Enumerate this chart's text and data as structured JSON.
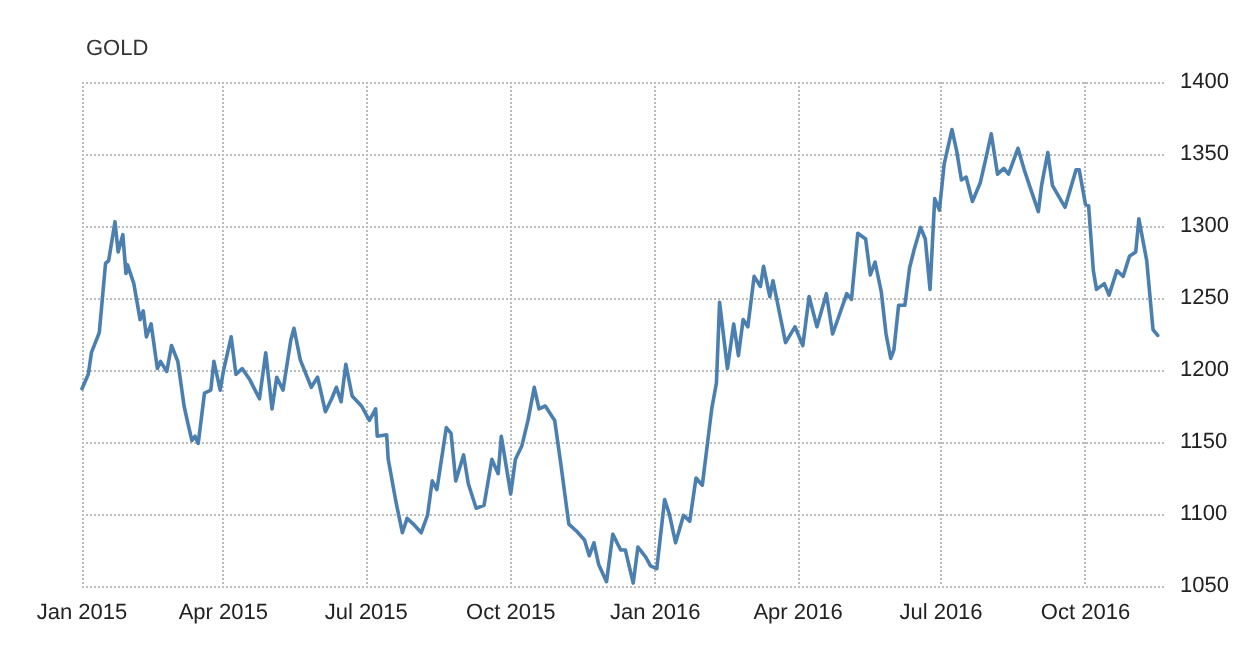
{
  "chart_data": {
    "type": "line",
    "title": "GOLD",
    "x": [
      "2015-01-01",
      "2015-01-05",
      "2015-01-07",
      "2015-01-12",
      "2015-01-16",
      "2015-01-18",
      "2015-01-22",
      "2015-01-24",
      "2015-01-27",
      "2015-01-29",
      "2015-01-30",
      "2015-02-03",
      "2015-02-07",
      "2015-02-09",
      "2015-02-11",
      "2015-02-14",
      "2015-02-18",
      "2015-02-20",
      "2015-02-24",
      "2015-02-27",
      "2015-03-03",
      "2015-03-07",
      "2015-03-09",
      "2015-03-12",
      "2015-03-14",
      "2015-03-16",
      "2015-03-20",
      "2015-03-24",
      "2015-03-26",
      "2015-03-30",
      "2015-04-01",
      "2015-04-06",
      "2015-04-09",
      "2015-04-13",
      "2015-04-18",
      "2015-04-24",
      "2015-04-28",
      "2015-05-02",
      "2015-05-05",
      "2015-05-09",
      "2015-05-14",
      "2015-05-16",
      "2015-05-20",
      "2015-05-27",
      "2015-05-31",
      "2015-06-05",
      "2015-06-09",
      "2015-06-12",
      "2015-06-15",
      "2015-06-18",
      "2015-06-22",
      "2015-06-28",
      "2015-07-03",
      "2015-07-07",
      "2015-07-08",
      "2015-07-14",
      "2015-07-15",
      "2015-07-20",
      "2015-07-24",
      "2015-07-27",
      "2015-07-31",
      "2015-08-05",
      "2015-08-09",
      "2015-08-12",
      "2015-08-15",
      "2015-08-21",
      "2015-08-24",
      "2015-08-27",
      "2015-09-01",
      "2015-09-04",
      "2015-09-09",
      "2015-09-14",
      "2015-09-19",
      "2015-09-23",
      "2015-09-25",
      "2015-10-01",
      "2015-10-04",
      "2015-10-08",
      "2015-10-12",
      "2015-10-16",
      "2015-10-19",
      "2015-10-23",
      "2015-10-29",
      "2015-11-02",
      "2015-11-07",
      "2015-11-12",
      "2015-11-17",
      "2015-11-20",
      "2015-11-23",
      "2015-11-26",
      "2015-12-01",
      "2015-12-05",
      "2015-12-10",
      "2015-12-13",
      "2015-12-18",
      "2015-12-21",
      "2015-12-26",
      "2015-12-29",
      "2016-01-02",
      "2016-01-07",
      "2016-01-10",
      "2016-01-14",
      "2016-01-19",
      "2016-01-23",
      "2016-01-27",
      "2016-01-31",
      "2016-02-06",
      "2016-02-09",
      "2016-02-11",
      "2016-02-16",
      "2016-02-20",
      "2016-02-23",
      "2016-02-26",
      "2016-02-29",
      "2016-03-04",
      "2016-03-08",
      "2016-03-10",
      "2016-03-14",
      "2016-03-16",
      "2016-03-24",
      "2016-03-30",
      "2016-04-04",
      "2016-04-08",
      "2016-04-13",
      "2016-04-19",
      "2016-04-23",
      "2016-05-02",
      "2016-05-05",
      "2016-05-09",
      "2016-05-14",
      "2016-05-17",
      "2016-05-20",
      "2016-05-24",
      "2016-05-27",
      "2016-05-30",
      "2016-06-01",
      "2016-06-04",
      "2016-06-08",
      "2016-06-11",
      "2016-06-14",
      "2016-06-18",
      "2016-06-21",
      "2016-06-24",
      "2016-06-27",
      "2016-06-30",
      "2016-07-03",
      "2016-07-08",
      "2016-07-11",
      "2016-07-14",
      "2016-07-17",
      "2016-07-21",
      "2016-07-26",
      "2016-07-30",
      "2016-08-02",
      "2016-08-06",
      "2016-08-10",
      "2016-08-13",
      "2016-08-19",
      "2016-08-23",
      "2016-08-27",
      "2016-09-01",
      "2016-09-03",
      "2016-09-07",
      "2016-09-10",
      "2016-09-18",
      "2016-09-25",
      "2016-09-27",
      "2016-10-01",
      "2016-10-03",
      "2016-10-06",
      "2016-10-08",
      "2016-10-13",
      "2016-10-16",
      "2016-10-21",
      "2016-10-25",
      "2016-10-29",
      "2016-11-02",
      "2016-11-04",
      "2016-11-09",
      "2016-11-13",
      "2016-11-16"
    ],
    "series": [
      {
        "color": "#4a7fb0",
        "values": [
          1187,
          1197,
          1212,
          1226,
          1274,
          1276,
          1303,
          1282,
          1294,
          1267,
          1273,
          1260,
          1235,
          1241,
          1223,
          1232,
          1201,
          1206,
          1199,
          1217,
          1206,
          1175,
          1165,
          1151,
          1154,
          1149,
          1184,
          1186,
          1206,
          1186,
          1199,
          1223,
          1197,
          1201,
          1193,
          1180,
          1212,
          1173,
          1195,
          1186,
          1221,
          1229,
          1207,
          1188,
          1195,
          1171,
          1180,
          1188,
          1178,
          1204,
          1182,
          1175,
          1165,
          1173,
          1154,
          1155,
          1138,
          1108,
          1087,
          1097,
          1093,
          1087,
          1099,
          1123,
          1117,
          1160,
          1156,
          1123,
          1141,
          1121,
          1104,
          1106,
          1138,
          1128,
          1154,
          1114,
          1138,
          1147,
          1165,
          1188,
          1173,
          1175,
          1165,
          1134,
          1093,
          1088,
          1082,
          1071,
          1080,
          1065,
          1053,
          1086,
          1075,
          1075,
          1052,
          1077,
          1070,
          1064,
          1062,
          1110,
          1100,
          1080,
          1099,
          1095,
          1125,
          1120,
          1173,
          1191,
          1247,
          1201,
          1232,
          1210,
          1235,
          1230,
          1265,
          1258,
          1272,
          1251,
          1262,
          1219,
          1230,
          1217,
          1251,
          1230,
          1253,
          1225,
          1253,
          1249,
          1295,
          1291,
          1266,
          1275,
          1254,
          1225,
          1208,
          1214,
          1245,
          1245,
          1271,
          1284,
          1299,
          1291,
          1256,
          1319,
          1311,
          1343,
          1367,
          1352,
          1332,
          1334,
          1317,
          1330,
          1349,
          1364,
          1336,
          1340,
          1336,
          1354,
          1339,
          1326,
          1310,
          1328,
          1351,
          1328,
          1313,
          1339,
          1339,
          1315,
          1314,
          1269,
          1256,
          1260,
          1252,
          1269,
          1265,
          1279,
          1282,
          1305,
          1276,
          1228,
          1224
        ]
      }
    ],
    "xlim": [
      "2015-01-01",
      "2016-11-20"
    ],
    "xticks": [
      {
        "value": "2015-01-01",
        "label": "Jan 2015"
      },
      {
        "value": "2015-04-01",
        "label": "Apr 2015"
      },
      {
        "value": "2015-07-01",
        "label": "Jul 2015"
      },
      {
        "value": "2015-10-01",
        "label": "Oct 2015"
      },
      {
        "value": "2016-01-01",
        "label": "Jan 2016"
      },
      {
        "value": "2016-04-01",
        "label": "Apr 2016"
      },
      {
        "value": "2016-07-01",
        "label": "Jul 2016"
      },
      {
        "value": "2016-10-01",
        "label": "Oct 2016"
      }
    ],
    "ylim": [
      1050,
      1400
    ],
    "yticks": [
      1050,
      1100,
      1150,
      1200,
      1250,
      1300,
      1350,
      1400
    ],
    "grid": true,
    "marker": "none"
  }
}
